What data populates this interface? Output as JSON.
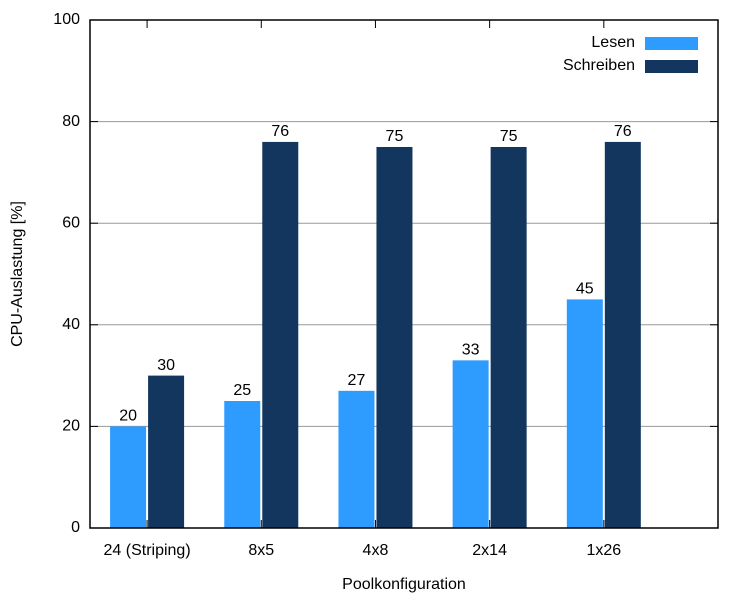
{
  "chart_data": {
    "type": "bar",
    "xlabel": "Poolkonfiguration",
    "ylabel": "CPU-Auslastung [%]",
    "categories": [
      "24 (Striping)",
      "8x5",
      "4x8",
      "2x14",
      "1x26"
    ],
    "series": [
      {
        "name": "Lesen",
        "color": "#2e9bff",
        "values": [
          20,
          25,
          27,
          33,
          45
        ]
      },
      {
        "name": "Schreiben",
        "color": "#12365e",
        "values": [
          30,
          76,
          75,
          75,
          76
        ]
      }
    ],
    "ylim": [
      0,
      100
    ],
    "yticks": [
      0,
      20,
      40,
      60,
      80,
      100
    ],
    "grid": true,
    "legend": "top-right",
    "show_value_labels": true
  }
}
